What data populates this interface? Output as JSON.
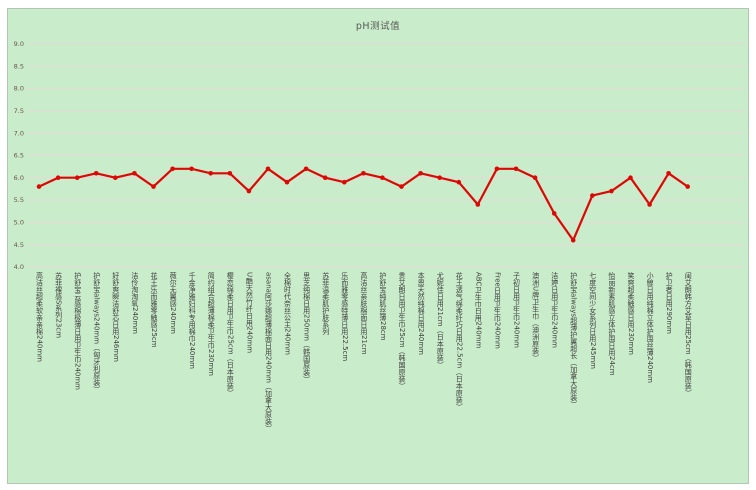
{
  "chart_data": {
    "type": "line",
    "title": "pH测试值",
    "series_name": "pH测试值",
    "legend": "none",
    "grid": "horizontal",
    "ylim": [
      4.0,
      9.0
    ],
    "ytick_step": 0.5,
    "ytick_labels": [
      "9.0",
      "8.5",
      "8.0",
      "7.5",
      "7.0",
      "6.5",
      "6.0",
      "5.5",
      "5.0",
      "4.5",
      "4.0"
    ],
    "categories": [
      "高洁丝超柔软亲亲棉240mm",
      "苏菲裸感S系列23cm",
      "护舒宝云感棉极薄日用卫生巾240mm",
      "护舒宝always240mm（匈牙利原装）",
      "好舒爽瞬洁舒芯日用246mm",
      "洁伶淘淘氧240mm",
      "花王乐而雅零触感25cm",
      "薇尔无翼感240mm",
      "千金净雅妇科专用棉巾240mm",
      "简约组合超薄棉柔卫生巾230mm",
      "樱恋绵柔日用卫生巾25cm（日本原装）",
      "U酷天然竹纤日用240mm",
      "asana阿莎娜超薄棉面日用240mm（加拿大原装）",
      "全棉时代奈丝公主240mm",
      "思芝纯棉日用250mm（韩国原装）",
      "苏菲温柔肌护肤系列",
      "乐而雅零感特薄日用22.5cm",
      "高洁丝亲肤棉面日用21cm",
      "护舒宝纯肌丝薄28cm",
      "贵艾朗日用卫生巾25cm（韩国原装）",
      "本恩天然纯棉日用240mm",
      "尤妮佳日用21cm（日本原装）",
      "花王透气绵柔纤巧日用22.5cm（日本原装）",
      "ABC卫生巾日用240mm",
      "Free日用卫生巾240mm",
      "子初日用卫生巾240mm",
      "澳洲U牌卫生巾（澳洲原装）",
      "洁婷日用卫生巾240mm",
      "护舒宝always超薄护翼超长（加拿大原装）",
      "七度空间少女系列日用245mm",
      "怡丽新素肌感立体护围日用24cm",
      "笑爽超柔触感日用230mm",
      "小鲸日用纯棉立体护围丝薄240mm",
      "护卫者日用290mm",
      "闺艾朗韩方艾草日用25cm（韩国原装）"
    ],
    "values": [
      5.8,
      6.0,
      6.0,
      6.1,
      6.0,
      6.1,
      5.8,
      6.2,
      6.2,
      6.1,
      6.1,
      5.7,
      6.2,
      5.9,
      6.2,
      6.0,
      5.9,
      6.1,
      6.0,
      5.8,
      6.1,
      6.0,
      5.9,
      5.4,
      6.2,
      6.2,
      6.0,
      5.2,
      4.6,
      5.6,
      5.7,
      6.0,
      5.4,
      6.1,
      5.8
    ],
    "colors": {
      "page_background": "#ffffff",
      "plot_background": "#c9ecca",
      "line": "#dc0806",
      "marker": "#dc0806",
      "gridline": "#e7d8da",
      "title_text": "#595959",
      "ytick_text": "#6e544c",
      "xtick_text": "#404040",
      "panel_border": "#b3c6b3"
    }
  }
}
